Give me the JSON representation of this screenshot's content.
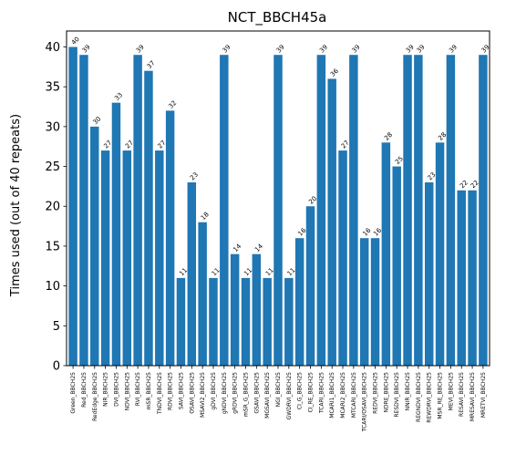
{
  "chart_data": {
    "type": "bar",
    "title": "NCT_BBCH45a",
    "xlabel": "",
    "ylabel": "Times used (out of 40 repeats)",
    "ylim": [
      0,
      42
    ],
    "yticks": [
      0,
      5,
      10,
      15,
      20,
      25,
      30,
      35,
      40
    ],
    "grid": false,
    "bar_color": "#1f77b4",
    "categories": [
      "Green_BBCH25",
      "Red_BBCH25",
      "RedEdge_BBCH25",
      "NIR_BBCH25",
      "DVI_BBCH25",
      "NDVI_BBCH25",
      "RVI_BBCH25",
      "mSR_BBCH25",
      "TNDVI_BBCH25",
      "RDVI_BBCH25",
      "SAVI_BBCH25",
      "OSAVI_BBCH25",
      "MSAVI2_BBCH25",
      "gDVI_BBCH25",
      "gNDVI_BBCH25",
      "gRDVI_BBCH25",
      "mSR_G_BBCH25",
      "GSAVI_BBCH25",
      "MGSAVI_BBCH25",
      "NGI_BBCH25",
      "GWDRVI_BBCH25",
      "CI_G_BBCH25",
      "CI_RE_BBCH25",
      "TCARI_BBCH25",
      "MCARI1_BBCH25",
      "MCARI2_BBCH25",
      "MTCARI_BBCH25",
      "TCARI/OSAVI_BBCH25",
      "REDVI_BBCH25",
      "NDRE_BBCH25",
      "RESDVI_BBCH25",
      "NNIR_BBCH25",
      "REGNDVI_BBCH25",
      "REWDRVI_BBCH25",
      "MSR_RE_BBCH25",
      "MEVI_BBCH25",
      "RESAVI_BBCH25",
      "MRESAVI_BBCH25",
      "MRETVI_BBCH25"
    ],
    "values": [
      40,
      39,
      30,
      27,
      33,
      27,
      39,
      37,
      27,
      32,
      11,
      23,
      18,
      11,
      39,
      14,
      11,
      14,
      11,
      39,
      11,
      16,
      20,
      39,
      36,
      27,
      39,
      16,
      16,
      28,
      25,
      39,
      39,
      23,
      28,
      39,
      22,
      22,
      39
    ],
    "data_labels": [
      "40",
      "39",
      "30",
      "27",
      "33",
      "27",
      "39",
      "37",
      "27",
      "32",
      "11",
      "23",
      "18",
      "11",
      "39",
      "14",
      "11",
      "14",
      "11",
      "39",
      "11",
      "16",
      "20",
      "39",
      "36",
      "27",
      "39",
      "16",
      "16",
      "28",
      "25",
      "39",
      "39",
      "23",
      "28",
      "39",
      "22",
      "22",
      "39"
    ]
  }
}
